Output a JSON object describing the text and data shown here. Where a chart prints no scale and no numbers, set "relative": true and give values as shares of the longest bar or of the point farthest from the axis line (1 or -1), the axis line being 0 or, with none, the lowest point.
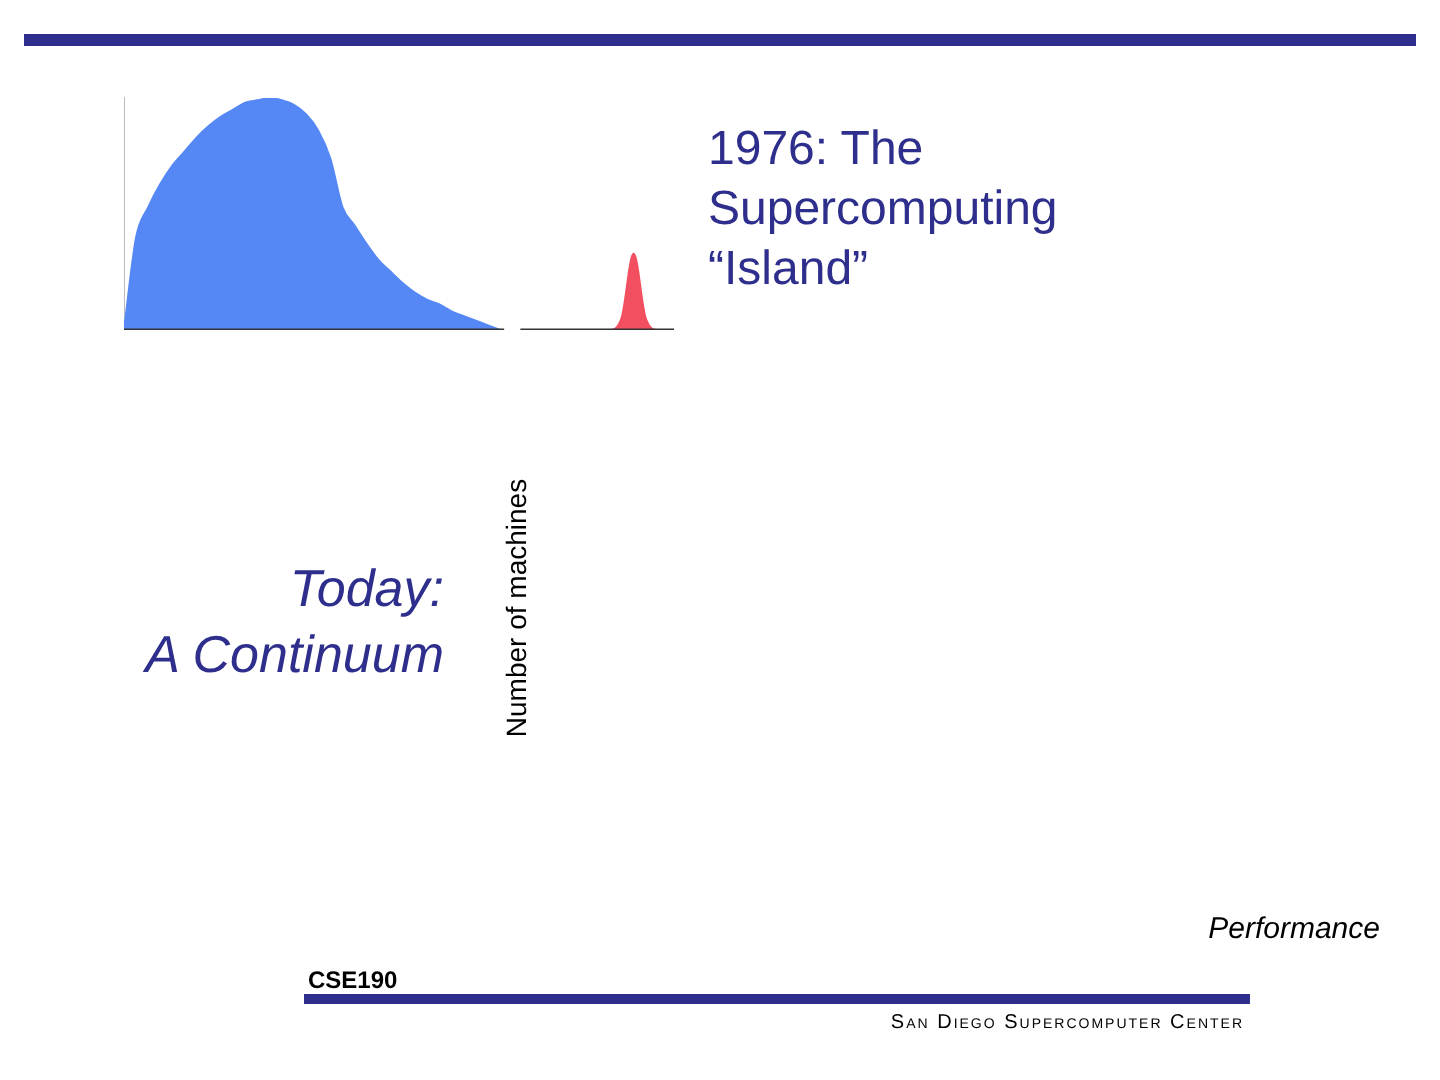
{
  "chart_data": {
    "type": "area",
    "relative": true,
    "categories": [
      null,
      null,
      null,
      null,
      null,
      null,
      null,
      null,
      null,
      null,
      null,
      null,
      null,
      null,
      null,
      null,
      null,
      null,
      null,
      null,
      null,
      null,
      null,
      null,
      null,
      null,
      null,
      null,
      null,
      null,
      null,
      null,
      null,
      null,
      null,
      null,
      null,
      null,
      null,
      null,
      null,
      null,
      null,
      null,
      null,
      null
    ],
    "series": [
      {
        "color": "#5588f5",
        "values": [
          0,
          0.4,
          0.53,
          0.63,
          0.71,
          0.77,
          0.83,
          0.88,
          0.92,
          0.95,
          0.98,
          0.99,
          1,
          0.99,
          0.97,
          0.93,
          0.86,
          0.74,
          0.53,
          0.45,
          0.37,
          0.3,
          0.25,
          0.2,
          0.16,
          0.13,
          0.11,
          0.08,
          0.06,
          0.04,
          0.02,
          0,
          null,
          null,
          null,
          null,
          null,
          null,
          null,
          null,
          null,
          null,
          null,
          null,
          null,
          null
        ]
      },
      {
        "color": "#f25060",
        "values": [
          null,
          null,
          null,
          null,
          null,
          null,
          null,
          null,
          null,
          null,
          null,
          null,
          null,
          null,
          null,
          null,
          null,
          null,
          null,
          null,
          null,
          null,
          null,
          null,
          null,
          null,
          null,
          null,
          null,
          null,
          null,
          null,
          null,
          0,
          0,
          0,
          0,
          0,
          0,
          0,
          0,
          0.05,
          0.33,
          0.05,
          0,
          0
        ]
      }
    ],
    "annotations": [
      "1976: The Supercomputing “Island”",
      "Today: A Continuum",
      "CSE190",
      "San Diego Supercomputer Center",
      "Number of machines",
      "Performance"
    ],
    "legend": false,
    "grid": false
  }
}
